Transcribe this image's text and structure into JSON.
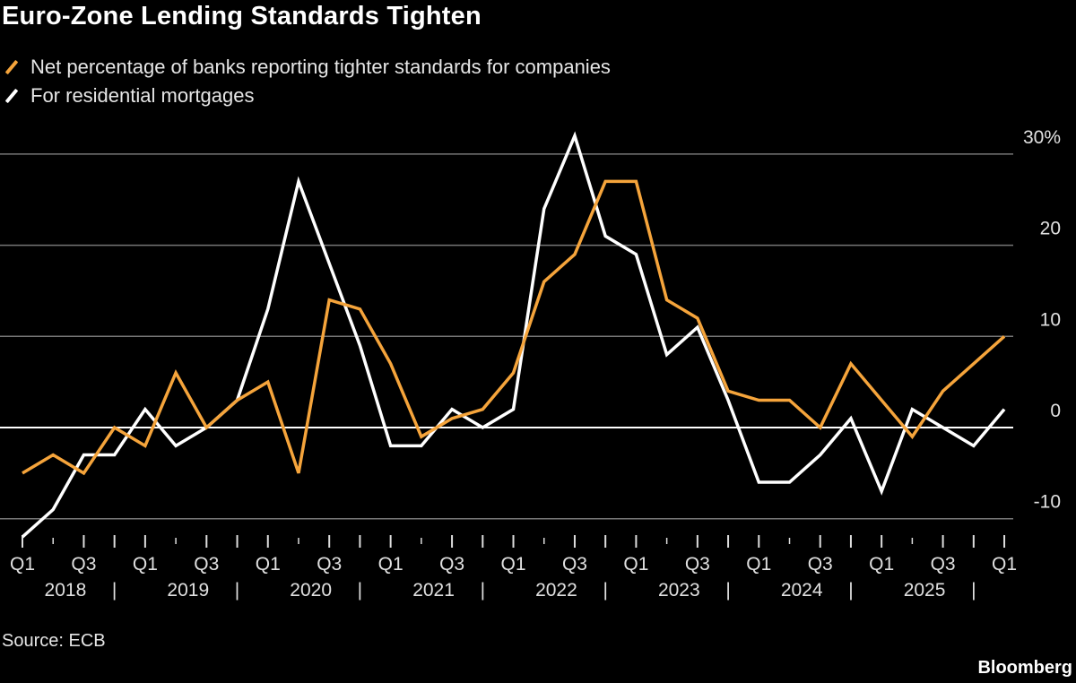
{
  "chart_data": {
    "type": "line",
    "title": "Euro-Zone Lending Standards Tighten",
    "source": "Source: ECB",
    "brand": "Bloomberg",
    "x": [
      "2018 Q1",
      "2018 Q2",
      "2018 Q3",
      "2018 Q4",
      "2019 Q1",
      "2019 Q2",
      "2019 Q3",
      "2019 Q4",
      "2020 Q1",
      "2020 Q2",
      "2020 Q3",
      "2020 Q4",
      "2021 Q1",
      "2021 Q2",
      "2021 Q3",
      "2021 Q4",
      "2022 Q1",
      "2022 Q2",
      "2022 Q3",
      "2022 Q4",
      "2023 Q1",
      "2023 Q2",
      "2023 Q3",
      "2023 Q4",
      "2024 Q1",
      "2024 Q2",
      "2024 Q3",
      "2024 Q4",
      "2025 Q1",
      "2025 Q2",
      "2025 Q3",
      "2025 Q4",
      "2026 Q1"
    ],
    "x_tick_labels": [
      "Q1",
      "",
      "Q3",
      "",
      "Q1",
      "",
      "Q3",
      "",
      "Q1",
      "",
      "Q3",
      "",
      "Q1",
      "",
      "Q3",
      "",
      "Q1",
      "",
      "Q3",
      "",
      "Q1",
      "",
      "Q3",
      "",
      "Q1",
      "",
      "Q3",
      "",
      "Q1",
      "",
      "Q3",
      "",
      "Q1"
    ],
    "year_labels": [
      "2018",
      "2019",
      "2020",
      "2021",
      "2022",
      "2023",
      "2024",
      "2025"
    ],
    "year_separator": "|",
    "series": [
      {
        "name": "Net percentage of banks reporting tighter standards for companies",
        "color": "#f5a43b",
        "values": [
          -5,
          -3,
          -5,
          0,
          -2,
          6,
          0,
          3,
          5,
          -5,
          14,
          13,
          7,
          -1,
          1,
          2,
          6,
          16,
          19,
          27,
          27,
          14,
          12,
          4,
          3,
          3,
          0,
          7,
          3,
          -1,
          4,
          7,
          10
        ]
      },
      {
        "name": "For residential mortgages",
        "color": "#ffffff",
        "values": [
          -12,
          -9,
          -3,
          -3,
          2,
          -2,
          0,
          3,
          13,
          27,
          18,
          9,
          -2,
          -2,
          2,
          0,
          2,
          24,
          32,
          21,
          19,
          8,
          11,
          3,
          -6,
          -6,
          -3,
          1,
          -7,
          2,
          0,
          -2,
          2
        ]
      }
    ],
    "ylim": [
      -12,
      32
    ],
    "y_ticks": [
      -10,
      0,
      10,
      20,
      30
    ],
    "y_tick_labels": [
      "-10",
      "0",
      "10",
      "20",
      "30%"
    ],
    "y_axis_side": "right",
    "grid": true,
    "legend_position": "top-left",
    "background": "#000000"
  }
}
